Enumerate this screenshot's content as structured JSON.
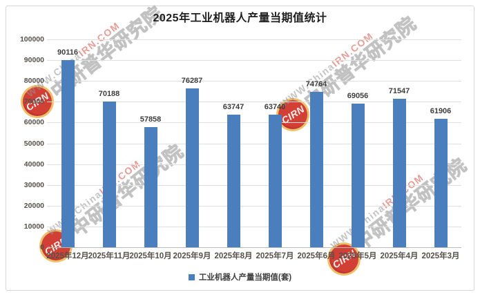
{
  "chart_data": {
    "type": "bar",
    "title": "2025年工业机器人产量当期值统计",
    "categories": [
      "2025年12月",
      "2025年11月",
      "2025年10月",
      "2025年9月",
      "2025年8月",
      "2025年7月",
      "2025年6月",
      "2025年5月",
      "2025年4月",
      "2025年3月"
    ],
    "values": [
      90116,
      70188,
      57858,
      76287,
      63747,
      63740,
      74764,
      69056,
      71547,
      61906
    ],
    "legend": "工业机器人产量当期值(套)",
    "xlabel": "",
    "ylabel": "",
    "ylim": [
      0,
      100000
    ],
    "ytick_step": 10000,
    "yticks": [
      0,
      10000,
      20000,
      30000,
      40000,
      50000,
      60000,
      70000,
      80000,
      90000,
      100000
    ],
    "grid": true,
    "legend_position": "bottom",
    "bar_color": "#4A7EBC",
    "title_color": "#1f1f1f",
    "axis_label_color": "#55514b",
    "value_label_color": "#3d3d3d",
    "gridline_color": "#e0e0e0"
  },
  "watermark": {
    "url_gray": "WWW.China",
    "url_red": "IRN.COM",
    "org_name": "中研普华研究院",
    "badge": "CIRN"
  }
}
